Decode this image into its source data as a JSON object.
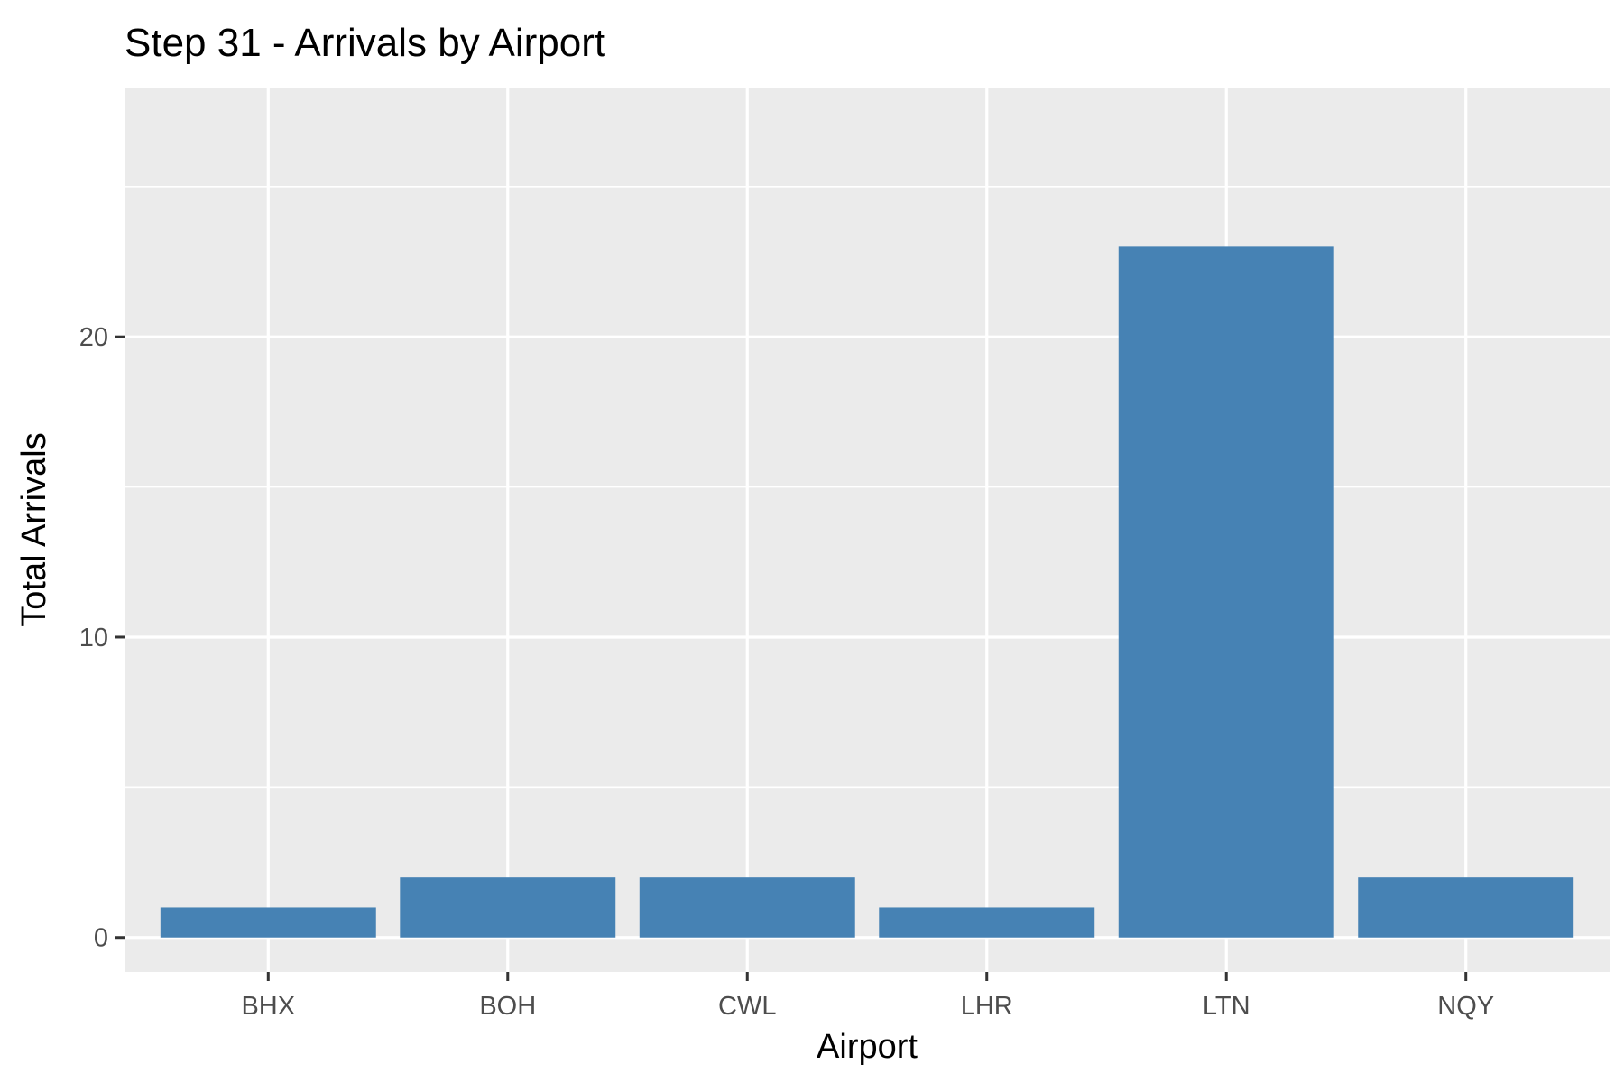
{
  "chart_data": {
    "type": "bar",
    "title": "Step 31 - Arrivals by Airport",
    "xlabel": "Airport",
    "ylabel": "Total Arrivals",
    "categories": [
      "BHX",
      "BOH",
      "CWL",
      "LHR",
      "LTN",
      "NQY"
    ],
    "values": [
      1,
      2,
      2,
      1,
      23,
      2
    ],
    "ylim": [
      -1.15,
      28.3
    ],
    "yticks": [
      0,
      10,
      20
    ],
    "grid": true,
    "legend": "none",
    "colors": {
      "bar": "#4682b4",
      "panel": "#ebebeb",
      "grid": "#ffffff"
    }
  }
}
